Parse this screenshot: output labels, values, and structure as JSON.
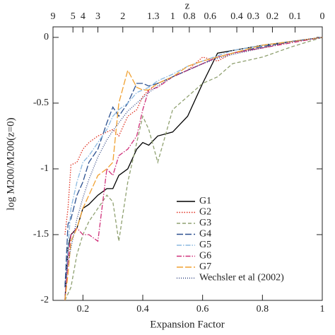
{
  "chart_data": {
    "type": "line",
    "xlabel": "Expansion Factor",
    "ylabel": "log M200/M200(z=0)",
    "x2label": "z",
    "x": [
      0.14,
      0.15,
      0.16,
      0.18,
      0.2,
      0.22,
      0.25,
      0.28,
      0.3,
      0.32,
      0.35,
      0.38,
      0.4,
      0.42,
      0.45,
      0.5,
      0.55,
      0.6,
      0.65,
      0.7,
      0.8,
      0.9,
      1.0
    ],
    "series": [
      {
        "name": "G1",
        "color": "#000000",
        "dash": "",
        "values": [
          -2,
          -1.6,
          -1.5,
          -1.45,
          -1.3,
          -1.27,
          -1.2,
          -1.15,
          -1.15,
          -1.05,
          -1.0,
          -0.85,
          -0.8,
          -0.82,
          -0.75,
          -0.72,
          -0.6,
          -0.35,
          -0.12,
          -0.1,
          -0.06,
          -0.03,
          0
        ]
      },
      {
        "name": "G2",
        "color": "#e03020",
        "dash": "1.5,2",
        "values": [
          -1.5,
          -1.3,
          -0.97,
          -0.95,
          -0.85,
          -0.8,
          -0.75,
          -0.72,
          -0.7,
          -0.75,
          -0.6,
          -0.55,
          -0.45,
          -0.4,
          -0.35,
          -0.3,
          -0.25,
          -0.15,
          -0.18,
          -0.12,
          -0.08,
          -0.03,
          0
        ]
      },
      {
        "name": "G3",
        "color": "#8fa070",
        "dash": "5,3",
        "values": [
          -2,
          -1.95,
          -1.9,
          -1.65,
          -1.5,
          -1.4,
          -1.3,
          -1.2,
          -1.25,
          -1.55,
          -1.1,
          -0.8,
          -0.6,
          -0.7,
          -0.95,
          -0.55,
          -0.45,
          -0.35,
          -0.3,
          -0.2,
          -0.15,
          -0.07,
          0
        ]
      },
      {
        "name": "G4",
        "color": "#2a4f8f",
        "dash": "9,3",
        "values": [
          -1.9,
          -1.42,
          -1.38,
          -1.2,
          -1.1,
          -0.95,
          -0.85,
          -0.65,
          -0.53,
          -0.6,
          -0.5,
          -0.35,
          -0.35,
          -0.37,
          -0.35,
          -0.3,
          -0.25,
          -0.2,
          -0.15,
          -0.12,
          -0.07,
          -0.03,
          0
        ]
      },
      {
        "name": "G5",
        "color": "#8ab8e0",
        "dash": "7,2,1.5,2",
        "values": [
          -2,
          -1.6,
          -1.3,
          -1.1,
          -0.95,
          -0.9,
          -0.8,
          -0.7,
          -0.6,
          -0.55,
          -0.5,
          -0.42,
          -0.4,
          -0.38,
          -0.33,
          -0.28,
          -0.22,
          -0.18,
          -0.14,
          -0.1,
          -0.06,
          -0.03,
          0
        ]
      },
      {
        "name": "G6",
        "color": "#d0307a",
        "dash": "7,2,1.5,2",
        "values": [
          -2,
          -1.7,
          -1.5,
          -1.45,
          -1.5,
          -1.5,
          -1.55,
          -1.0,
          -1.05,
          -0.9,
          -0.85,
          -0.75,
          -0.55,
          -0.4,
          -0.38,
          -0.3,
          -0.25,
          -0.2,
          -0.15,
          -0.12,
          -0.08,
          -0.04,
          0
        ]
      },
      {
        "name": "G7",
        "color": "#f0a030",
        "dash": "9,3",
        "values": [
          -2,
          -1.8,
          -1.55,
          -1.45,
          -1.3,
          -1.2,
          -1.05,
          -1.0,
          -0.95,
          -0.5,
          -0.25,
          -0.38,
          -0.4,
          -0.4,
          -0.35,
          -0.3,
          -0.22,
          -0.18,
          -0.15,
          -0.12,
          -0.06,
          -0.03,
          0
        ]
      },
      {
        "name": "Wechsler et al (2002)",
        "color": "#2a3f7f",
        "dash": "1,2",
        "values": [
          -1.87,
          -1.72,
          -1.6,
          -1.38,
          -1.22,
          -1.08,
          -0.91,
          -0.78,
          -0.71,
          -0.65,
          -0.56,
          -0.5,
          -0.46,
          -0.42,
          -0.37,
          -0.3,
          -0.25,
          -0.2,
          -0.16,
          -0.13,
          -0.08,
          -0.03,
          0
        ]
      }
    ],
    "xlim": [
      0.1,
      1
    ],
    "xticks": [
      0.2,
      0.4,
      0.6,
      0.8,
      1
    ],
    "ylim": [
      -2,
      0.08
    ],
    "yticks": [
      0,
      -0.5,
      -1,
      -1.5,
      -2
    ],
    "x2ticks": [
      9,
      5,
      4,
      3,
      2,
      1.3,
      1,
      0.8,
      0.6,
      0.4,
      0.3,
      0.2,
      0.1,
      0
    ],
    "legend": "lower right",
    "grid": false
  }
}
